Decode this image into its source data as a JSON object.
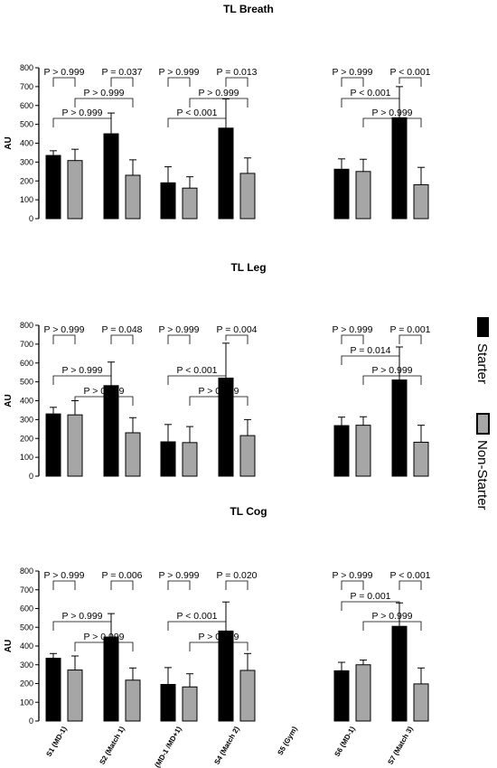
{
  "legend": {
    "starter_label": "Starter",
    "non_starter_label": "Non-Starter",
    "starter_color": "#000000",
    "non_starter_color": "#A6A6A6"
  },
  "chart_data": [
    {
      "type": "bar",
      "title": "TL Breath",
      "ylabel": "AU",
      "ylim": [
        0,
        800
      ],
      "yticks": [
        0,
        100,
        200,
        300,
        400,
        500,
        600,
        700,
        800
      ],
      "categories": [
        "S1 (MD-1)",
        "S2 (Match 1)",
        "S3 (MD-1 /MD+1)",
        "S4 (Match 2)",
        "S5 (Gym)",
        "S6 (MD-1)",
        "S7 (Match 3)"
      ],
      "series": [
        {
          "name": "Starter",
          "values": [
            335,
            450,
            190,
            480,
            null,
            262,
            535
          ],
          "errors": [
            25,
            110,
            85,
            155,
            null,
            55,
            165
          ]
        },
        {
          "name": "Non-Starter",
          "values": [
            308,
            230,
            162,
            240,
            null,
            250,
            180
          ],
          "errors": [
            60,
            82,
            60,
            82,
            null,
            65,
            92
          ]
        }
      ],
      "annotations": [
        {
          "text": "P > 0.999",
          "from": [
            0,
            0
          ],
          "to": [
            1,
            0
          ],
          "level": 2
        },
        {
          "text": "P > 0.999",
          "from": [
            0,
            1
          ],
          "to": [
            1,
            1
          ],
          "level": 1
        },
        {
          "text": "P > 0.999",
          "from": [
            0,
            0
          ],
          "to": [
            0,
            1
          ],
          "level": 0
        },
        {
          "text": "P = 0.037",
          "from": [
            1,
            0
          ],
          "to": [
            1,
            1
          ],
          "level": 0
        },
        {
          "text": "P < 0.001",
          "from": [
            2,
            0
          ],
          "to": [
            3,
            0
          ],
          "level": 2
        },
        {
          "text": "P > 0.999",
          "from": [
            2,
            1
          ],
          "to": [
            3,
            1
          ],
          "level": 1
        },
        {
          "text": "P > 0.999",
          "from": [
            2,
            0
          ],
          "to": [
            2,
            1
          ],
          "level": 0
        },
        {
          "text": "P = 0.013",
          "from": [
            3,
            0
          ],
          "to": [
            3,
            1
          ],
          "level": 0
        },
        {
          "text": "P > 0.999",
          "from": [
            5,
            1
          ],
          "to": [
            6,
            1
          ],
          "level": 2
        },
        {
          "text": "P < 0.001",
          "from": [
            5,
            0
          ],
          "to": [
            6,
            0
          ],
          "level": 1
        },
        {
          "text": "P > 0.999",
          "from": [
            5,
            0
          ],
          "to": [
            5,
            1
          ],
          "level": 0
        },
        {
          "text": "P < 0.001",
          "from": [
            6,
            0
          ],
          "to": [
            6,
            1
          ],
          "level": 0
        }
      ]
    },
    {
      "type": "bar",
      "title": "TL Leg",
      "ylabel": "AU",
      "ylim": [
        0,
        800
      ],
      "yticks": [
        0,
        100,
        200,
        300,
        400,
        500,
        600,
        700,
        800
      ],
      "categories": [
        "S1 (MD-1)",
        "S2 (Match 1)",
        "S3 (MD-1 /MD+1)",
        "S4 (Match 2)",
        "S5 (Gym)",
        "S6 (MD-1)",
        "S7 (Match 3)"
      ],
      "series": [
        {
          "name": "Starter",
          "values": [
            330,
            480,
            182,
            520,
            null,
            268,
            510
          ],
          "errors": [
            35,
            125,
            92,
            185,
            null,
            45,
            175
          ]
        },
        {
          "name": "Non-Starter",
          "values": [
            325,
            230,
            178,
            215,
            null,
            270,
            180
          ],
          "errors": [
            75,
            80,
            85,
            85,
            null,
            45,
            90
          ]
        }
      ],
      "annotations": [
        {
          "text": "P > 0.999",
          "from": [
            0,
            1
          ],
          "to": [
            1,
            1
          ],
          "level": 3
        },
        {
          "text": "P > 0.999",
          "from": [
            0,
            0
          ],
          "to": [
            1,
            0
          ],
          "level": 2
        },
        {
          "text": "P > 0.999",
          "from": [
            0,
            0
          ],
          "to": [
            0,
            1
          ],
          "level": 0
        },
        {
          "text": "P = 0.048",
          "from": [
            1,
            0
          ],
          "to": [
            1,
            1
          ],
          "level": 0
        },
        {
          "text": "P > 0.999",
          "from": [
            2,
            1
          ],
          "to": [
            3,
            1
          ],
          "level": 3
        },
        {
          "text": "P < 0.001",
          "from": [
            2,
            0
          ],
          "to": [
            3,
            0
          ],
          "level": 2
        },
        {
          "text": "P > 0.999",
          "from": [
            2,
            0
          ],
          "to": [
            2,
            1
          ],
          "level": 0
        },
        {
          "text": "P = 0.004",
          "from": [
            3,
            0
          ],
          "to": [
            3,
            1
          ],
          "level": 0
        },
        {
          "text": "P > 0.999",
          "from": [
            5,
            1
          ],
          "to": [
            6,
            1
          ],
          "level": 2
        },
        {
          "text": "P = 0.014",
          "from": [
            5,
            0
          ],
          "to": [
            6,
            0
          ],
          "level": 1
        },
        {
          "text": "P > 0.999",
          "from": [
            5,
            0
          ],
          "to": [
            5,
            1
          ],
          "level": 0
        },
        {
          "text": "P = 0.001",
          "from": [
            6,
            0
          ],
          "to": [
            6,
            1
          ],
          "level": 0
        }
      ]
    },
    {
      "type": "bar",
      "title": "TL Cog",
      "ylabel": "AU",
      "ylim": [
        0,
        800
      ],
      "yticks": [
        0,
        100,
        200,
        300,
        400,
        500,
        600,
        700,
        800
      ],
      "categories": [
        "S1 (MD-1)",
        "S2 (Match 1)",
        "S3 (MD-1 /MD+1)",
        "S4 (Match 2)",
        "S5 (Gym)",
        "S6 (MD-1)",
        "S7 (Match 3)"
      ],
      "series": [
        {
          "name": "Starter",
          "values": [
            335,
            448,
            195,
            480,
            null,
            268,
            505
          ],
          "errors": [
            25,
            125,
            90,
            155,
            null,
            45,
            125
          ]
        },
        {
          "name": "Non-Starter",
          "values": [
            272,
            218,
            182,
            270,
            null,
            300,
            198
          ],
          "errors": [
            75,
            65,
            70,
            90,
            null,
            25,
            85
          ]
        }
      ],
      "annotations": [
        {
          "text": "P > 0.999",
          "from": [
            0,
            1
          ],
          "to": [
            1,
            1
          ],
          "level": 3
        },
        {
          "text": "P > 0.999",
          "from": [
            0,
            0
          ],
          "to": [
            1,
            0
          ],
          "level": 2
        },
        {
          "text": "P > 0.999",
          "from": [
            0,
            0
          ],
          "to": [
            0,
            1
          ],
          "level": 0
        },
        {
          "text": "P = 0.006",
          "from": [
            1,
            0
          ],
          "to": [
            1,
            1
          ],
          "level": 0
        },
        {
          "text": "P > 0.999",
          "from": [
            2,
            1
          ],
          "to": [
            3,
            1
          ],
          "level": 3
        },
        {
          "text": "P < 0.001",
          "from": [
            2,
            0
          ],
          "to": [
            3,
            0
          ],
          "level": 2
        },
        {
          "text": "P > 0.999",
          "from": [
            2,
            0
          ],
          "to": [
            2,
            1
          ],
          "level": 0
        },
        {
          "text": "P = 0.020",
          "from": [
            3,
            0
          ],
          "to": [
            3,
            1
          ],
          "level": 0
        },
        {
          "text": "P > 0.999",
          "from": [
            5,
            1
          ],
          "to": [
            6,
            1
          ],
          "level": 2
        },
        {
          "text": "P = 0.001",
          "from": [
            5,
            0
          ],
          "to": [
            6,
            0
          ],
          "level": 1
        },
        {
          "text": "P > 0.999",
          "from": [
            5,
            0
          ],
          "to": [
            5,
            1
          ],
          "level": 0
        },
        {
          "text": "P < 0.001",
          "from": [
            6,
            0
          ],
          "to": [
            6,
            1
          ],
          "level": 0
        }
      ]
    }
  ]
}
